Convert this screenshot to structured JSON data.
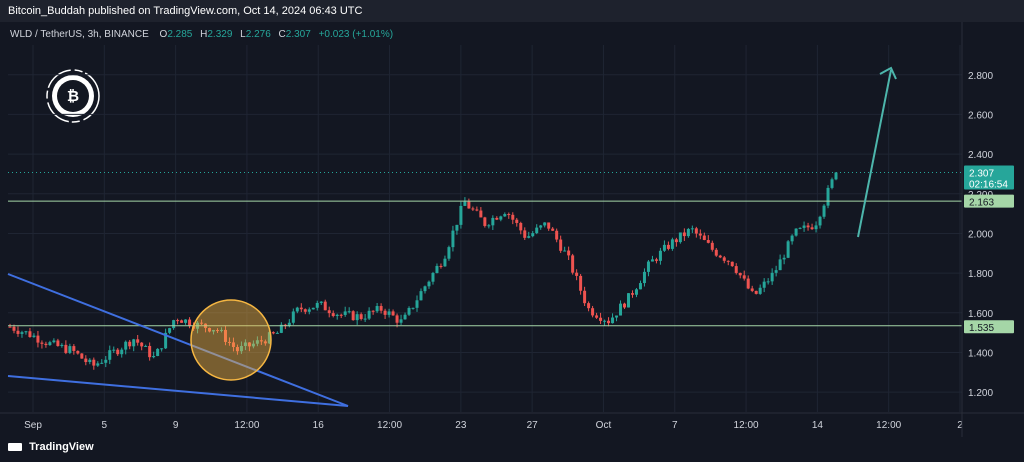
{
  "header": {
    "text": "Bitcoin_Buddah published on TradingView.com, Oct 14, 2024 06:43 UTC"
  },
  "symbol_bar": {
    "symbol": "WLD / TetherUS, 3h, BINANCE",
    "open_label": "O",
    "open": "2.285",
    "high_label": "H",
    "high": "2.329",
    "low_label": "L",
    "low": "2.276",
    "close_label": "C",
    "close": "2.307",
    "change": "+0.023 (+1.01%)"
  },
  "footer": {
    "brand": "TradingView"
  },
  "colors": {
    "background": "#131722",
    "up": "#26a69a",
    "down": "#ef5350",
    "level": "#a5d6a7",
    "trendline": "#3f6fe0",
    "arrow": "#4db6ac",
    "highlight": "#f5b642"
  },
  "icons": {
    "logo": "buddha-bitcoin-logo-icon",
    "brand": "tradingview-logo-icon"
  },
  "price_tags": {
    "last_price": "2.307",
    "countdown": "02:16:54",
    "resistance": "2.163",
    "support": "1.535"
  },
  "chart_data": {
    "type": "candlestick",
    "ylim": [
      1.1,
      2.95
    ],
    "y_ticks": [
      "2.800",
      "2.600",
      "2.400",
      "2.200",
      "2.000",
      "1.800",
      "1.600",
      "1.400",
      "1.200"
    ],
    "y_tick_values": [
      2.8,
      2.6,
      2.4,
      2.2,
      2.0,
      1.8,
      1.6,
      1.4,
      1.2
    ],
    "x_ticks": [
      "Sep",
      "5",
      "9",
      "12:00",
      "16",
      "12:00",
      "23",
      "27",
      "Oct",
      "7",
      "12:00",
      "14",
      "12:00",
      "2"
    ],
    "horizontal_levels": [
      2.163,
      1.535
    ],
    "last_price": 2.307,
    "price_path": [
      [
        "Aug 30",
        1.53
      ],
      [
        "Sep 1",
        1.49
      ],
      [
        "Sep 3",
        1.44
      ],
      [
        "Sep 5",
        1.41
      ],
      [
        "Sep 7",
        1.33
      ],
      [
        "Sep 9",
        1.4
      ],
      [
        "Sep 10",
        1.47
      ],
      [
        "Sep 11",
        1.37
      ],
      [
        "Sep 12",
        1.58
      ],
      [
        "Sep 13",
        1.54
      ],
      [
        "Sep 14",
        1.52
      ],
      [
        "Sep 15",
        1.41
      ],
      [
        "Sep 16",
        1.45
      ],
      [
        "Sep 17",
        1.5
      ],
      [
        "Sep 18",
        1.62
      ],
      [
        "Sep 19",
        1.64
      ],
      [
        "Sep 20",
        1.59
      ],
      [
        "Sep 21",
        1.58
      ],
      [
        "Sep 22",
        1.62
      ],
      [
        "Sep 23",
        1.55
      ],
      [
        "Sep 24",
        1.72
      ],
      [
        "Sep 25",
        1.88
      ],
      [
        "Sep 26",
        2.16
      ],
      [
        "Sep 27",
        2.05
      ],
      [
        "Sep 28",
        2.12
      ],
      [
        "Sep 29",
        1.98
      ],
      [
        "Sep 30",
        2.05
      ],
      [
        "Oct 1",
        1.88
      ],
      [
        "Oct 2",
        1.62
      ],
      [
        "Oct 3",
        1.56
      ],
      [
        "Oct 4",
        1.68
      ],
      [
        "Oct 5",
        1.85
      ],
      [
        "Oct 6",
        1.95
      ],
      [
        "Oct 7",
        2.02
      ],
      [
        "Oct 8",
        1.92
      ],
      [
        "Oct 9",
        1.85
      ],
      [
        "Oct 10",
        1.68
      ],
      [
        "Oct 11",
        1.8
      ],
      [
        "Oct 12",
        2.0
      ],
      [
        "Oct 13",
        2.05
      ],
      [
        "Oct 14",
        2.31
      ]
    ]
  }
}
